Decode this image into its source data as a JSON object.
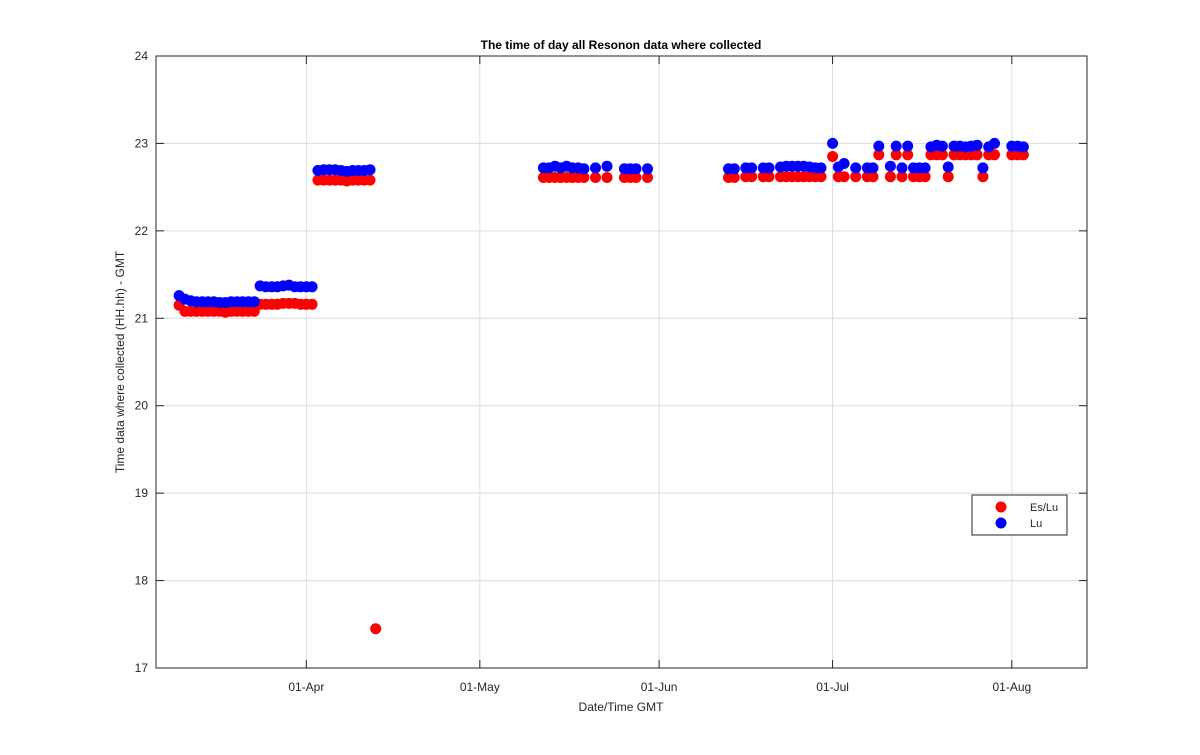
{
  "chart_data": {
    "type": "scatter",
    "title": "The time of day all Resonon data where collected",
    "xlabel": "Date/Time GMT",
    "ylabel": "Time data where collected (HH.hh) - GMT",
    "xlim": [
      "2016-03-06",
      "2016-08-14"
    ],
    "ylim": [
      17,
      24
    ],
    "x_ticks": [
      {
        "date": "2016-04-01",
        "label": "01-Apr"
      },
      {
        "date": "2016-05-01",
        "label": "01-May"
      },
      {
        "date": "2016-06-01",
        "label": "01-Jun"
      },
      {
        "date": "2016-07-01",
        "label": "01-Jul"
      },
      {
        "date": "2016-08-01",
        "label": "01-Aug"
      }
    ],
    "y_ticks": [
      17,
      18,
      19,
      20,
      21,
      22,
      23,
      24
    ],
    "y_tick_labels": [
      "17",
      "18",
      "19",
      "20",
      "21",
      "22",
      "23",
      "24"
    ],
    "grid": true,
    "legend_position": "right",
    "colors": {
      "es_lu": "#ff0000",
      "lu": "#0000ff"
    },
    "series": [
      {
        "name": "Es/Lu",
        "color": "#ff0000",
        "points": [
          [
            "2016-03-10",
            21.15
          ],
          [
            "2016-03-11",
            21.08
          ],
          [
            "2016-03-12",
            21.08
          ],
          [
            "2016-03-13",
            21.08
          ],
          [
            "2016-03-14",
            21.08
          ],
          [
            "2016-03-15",
            21.08
          ],
          [
            "2016-03-16",
            21.08
          ],
          [
            "2016-03-17",
            21.08
          ],
          [
            "2016-03-18",
            21.07
          ],
          [
            "2016-03-19",
            21.08
          ],
          [
            "2016-03-20",
            21.08
          ],
          [
            "2016-03-21",
            21.08
          ],
          [
            "2016-03-22",
            21.08
          ],
          [
            "2016-03-23",
            21.08
          ],
          [
            "2016-03-24",
            21.16
          ],
          [
            "2016-03-25",
            21.16
          ],
          [
            "2016-03-26",
            21.16
          ],
          [
            "2016-03-27",
            21.16
          ],
          [
            "2016-03-28",
            21.17
          ],
          [
            "2016-03-29",
            21.17
          ],
          [
            "2016-03-30",
            21.17
          ],
          [
            "2016-03-31",
            21.16
          ],
          [
            "2016-04-01",
            21.16
          ],
          [
            "2016-04-02",
            21.16
          ],
          [
            "2016-04-03",
            22.58
          ],
          [
            "2016-04-04",
            22.58
          ],
          [
            "2016-04-05",
            22.58
          ],
          [
            "2016-04-06",
            22.58
          ],
          [
            "2016-04-07",
            22.58
          ],
          [
            "2016-04-08",
            22.57
          ],
          [
            "2016-04-09",
            22.58
          ],
          [
            "2016-04-10",
            22.58
          ],
          [
            "2016-04-11",
            22.58
          ],
          [
            "2016-04-12",
            22.58
          ],
          [
            "2016-04-13",
            17.45
          ],
          [
            "2016-05-12",
            22.61
          ],
          [
            "2016-05-13",
            22.61
          ],
          [
            "2016-05-14",
            22.61
          ],
          [
            "2016-05-15",
            22.61
          ],
          [
            "2016-05-16",
            22.61
          ],
          [
            "2016-05-17",
            22.61
          ],
          [
            "2016-05-18",
            22.61
          ],
          [
            "2016-05-19",
            22.61
          ],
          [
            "2016-05-21",
            22.61
          ],
          [
            "2016-05-23",
            22.61
          ],
          [
            "2016-05-26",
            22.61
          ],
          [
            "2016-05-27",
            22.61
          ],
          [
            "2016-05-28",
            22.61
          ],
          [
            "2016-05-30",
            22.61
          ],
          [
            "2016-06-13",
            22.61
          ],
          [
            "2016-06-14",
            22.61
          ],
          [
            "2016-06-16",
            22.62
          ],
          [
            "2016-06-17",
            22.62
          ],
          [
            "2016-06-19",
            22.62
          ],
          [
            "2016-06-20",
            22.62
          ],
          [
            "2016-06-22",
            22.62
          ],
          [
            "2016-06-23",
            22.62
          ],
          [
            "2016-06-24",
            22.62
          ],
          [
            "2016-06-25",
            22.62
          ],
          [
            "2016-06-26",
            22.62
          ],
          [
            "2016-06-27",
            22.62
          ],
          [
            "2016-06-28",
            22.62
          ],
          [
            "2016-06-29",
            22.62
          ],
          [
            "2016-07-01",
            22.85
          ],
          [
            "2016-07-02",
            22.62
          ],
          [
            "2016-07-03",
            22.62
          ],
          [
            "2016-07-05",
            22.62
          ],
          [
            "2016-07-07",
            22.62
          ],
          [
            "2016-07-08",
            22.62
          ],
          [
            "2016-07-09",
            22.87
          ],
          [
            "2016-07-11",
            22.62
          ],
          [
            "2016-07-12",
            22.87
          ],
          [
            "2016-07-13",
            22.62
          ],
          [
            "2016-07-14",
            22.87
          ],
          [
            "2016-07-15",
            22.62
          ],
          [
            "2016-07-16",
            22.62
          ],
          [
            "2016-07-17",
            22.62
          ],
          [
            "2016-07-18",
            22.87
          ],
          [
            "2016-07-19",
            22.87
          ],
          [
            "2016-07-20",
            22.87
          ],
          [
            "2016-07-21",
            22.62
          ],
          [
            "2016-07-22",
            22.87
          ],
          [
            "2016-07-23",
            22.87
          ],
          [
            "2016-07-24",
            22.87
          ],
          [
            "2016-07-25",
            22.87
          ],
          [
            "2016-07-26",
            22.87
          ],
          [
            "2016-07-27",
            22.62
          ],
          [
            "2016-07-28",
            22.87
          ],
          [
            "2016-07-29",
            22.87
          ],
          [
            "2016-08-01",
            22.87
          ],
          [
            "2016-08-02",
            22.87
          ],
          [
            "2016-08-03",
            22.87
          ]
        ]
      },
      {
        "name": "Lu",
        "color": "#0000ff",
        "points": [
          [
            "2016-03-10",
            21.26
          ],
          [
            "2016-03-11",
            21.22
          ],
          [
            "2016-03-12",
            21.2
          ],
          [
            "2016-03-13",
            21.19
          ],
          [
            "2016-03-14",
            21.19
          ],
          [
            "2016-03-15",
            21.19
          ],
          [
            "2016-03-16",
            21.19
          ],
          [
            "2016-03-17",
            21.18
          ],
          [
            "2016-03-18",
            21.18
          ],
          [
            "2016-03-19",
            21.19
          ],
          [
            "2016-03-20",
            21.19
          ],
          [
            "2016-03-21",
            21.19
          ],
          [
            "2016-03-22",
            21.19
          ],
          [
            "2016-03-23",
            21.19
          ],
          [
            "2016-03-24",
            21.37
          ],
          [
            "2016-03-25",
            21.36
          ],
          [
            "2016-03-26",
            21.36
          ],
          [
            "2016-03-27",
            21.36
          ],
          [
            "2016-03-28",
            21.37
          ],
          [
            "2016-03-29",
            21.38
          ],
          [
            "2016-03-30",
            21.36
          ],
          [
            "2016-03-31",
            21.36
          ],
          [
            "2016-04-01",
            21.36
          ],
          [
            "2016-04-02",
            21.36
          ],
          [
            "2016-04-03",
            22.69
          ],
          [
            "2016-04-04",
            22.7
          ],
          [
            "2016-04-05",
            22.7
          ],
          [
            "2016-04-06",
            22.7
          ],
          [
            "2016-04-07",
            22.69
          ],
          [
            "2016-04-08",
            22.68
          ],
          [
            "2016-04-09",
            22.69
          ],
          [
            "2016-04-10",
            22.69
          ],
          [
            "2016-04-11",
            22.69
          ],
          [
            "2016-04-12",
            22.7
          ],
          [
            "2016-05-12",
            22.72
          ],
          [
            "2016-05-13",
            22.72
          ],
          [
            "2016-05-14",
            22.74
          ],
          [
            "2016-05-15",
            22.72
          ],
          [
            "2016-05-16",
            22.74
          ],
          [
            "2016-05-17",
            22.72
          ],
          [
            "2016-05-18",
            22.72
          ],
          [
            "2016-05-19",
            22.71
          ],
          [
            "2016-05-21",
            22.72
          ],
          [
            "2016-05-23",
            22.74
          ],
          [
            "2016-05-26",
            22.71
          ],
          [
            "2016-05-27",
            22.71
          ],
          [
            "2016-05-28",
            22.71
          ],
          [
            "2016-05-30",
            22.71
          ],
          [
            "2016-06-13",
            22.71
          ],
          [
            "2016-06-14",
            22.71
          ],
          [
            "2016-06-16",
            22.72
          ],
          [
            "2016-06-17",
            22.72
          ],
          [
            "2016-06-19",
            22.72
          ],
          [
            "2016-06-20",
            22.72
          ],
          [
            "2016-06-22",
            22.73
          ],
          [
            "2016-06-23",
            22.74
          ],
          [
            "2016-06-24",
            22.74
          ],
          [
            "2016-06-25",
            22.74
          ],
          [
            "2016-06-26",
            22.74
          ],
          [
            "2016-06-27",
            22.73
          ],
          [
            "2016-06-28",
            22.72
          ],
          [
            "2016-06-29",
            22.72
          ],
          [
            "2016-07-01",
            23.0
          ],
          [
            "2016-07-02",
            22.73
          ],
          [
            "2016-07-03",
            22.77
          ],
          [
            "2016-07-05",
            22.72
          ],
          [
            "2016-07-07",
            22.72
          ],
          [
            "2016-07-08",
            22.72
          ],
          [
            "2016-07-09",
            22.97
          ],
          [
            "2016-07-11",
            22.74
          ],
          [
            "2016-07-12",
            22.97
          ],
          [
            "2016-07-13",
            22.72
          ],
          [
            "2016-07-14",
            22.97
          ],
          [
            "2016-07-15",
            22.72
          ],
          [
            "2016-07-16",
            22.72
          ],
          [
            "2016-07-17",
            22.72
          ],
          [
            "2016-07-18",
            22.96
          ],
          [
            "2016-07-19",
            22.98
          ],
          [
            "2016-07-20",
            22.97
          ],
          [
            "2016-07-21",
            22.73
          ],
          [
            "2016-07-22",
            22.97
          ],
          [
            "2016-07-23",
            22.97
          ],
          [
            "2016-07-24",
            22.96
          ],
          [
            "2016-07-25",
            22.97
          ],
          [
            "2016-07-26",
            22.98
          ],
          [
            "2016-07-27",
            22.72
          ],
          [
            "2016-07-28",
            22.96
          ],
          [
            "2016-07-29",
            23.0
          ],
          [
            "2016-08-01",
            22.97
          ],
          [
            "2016-08-02",
            22.97
          ],
          [
            "2016-08-03",
            22.96
          ]
        ]
      }
    ]
  }
}
